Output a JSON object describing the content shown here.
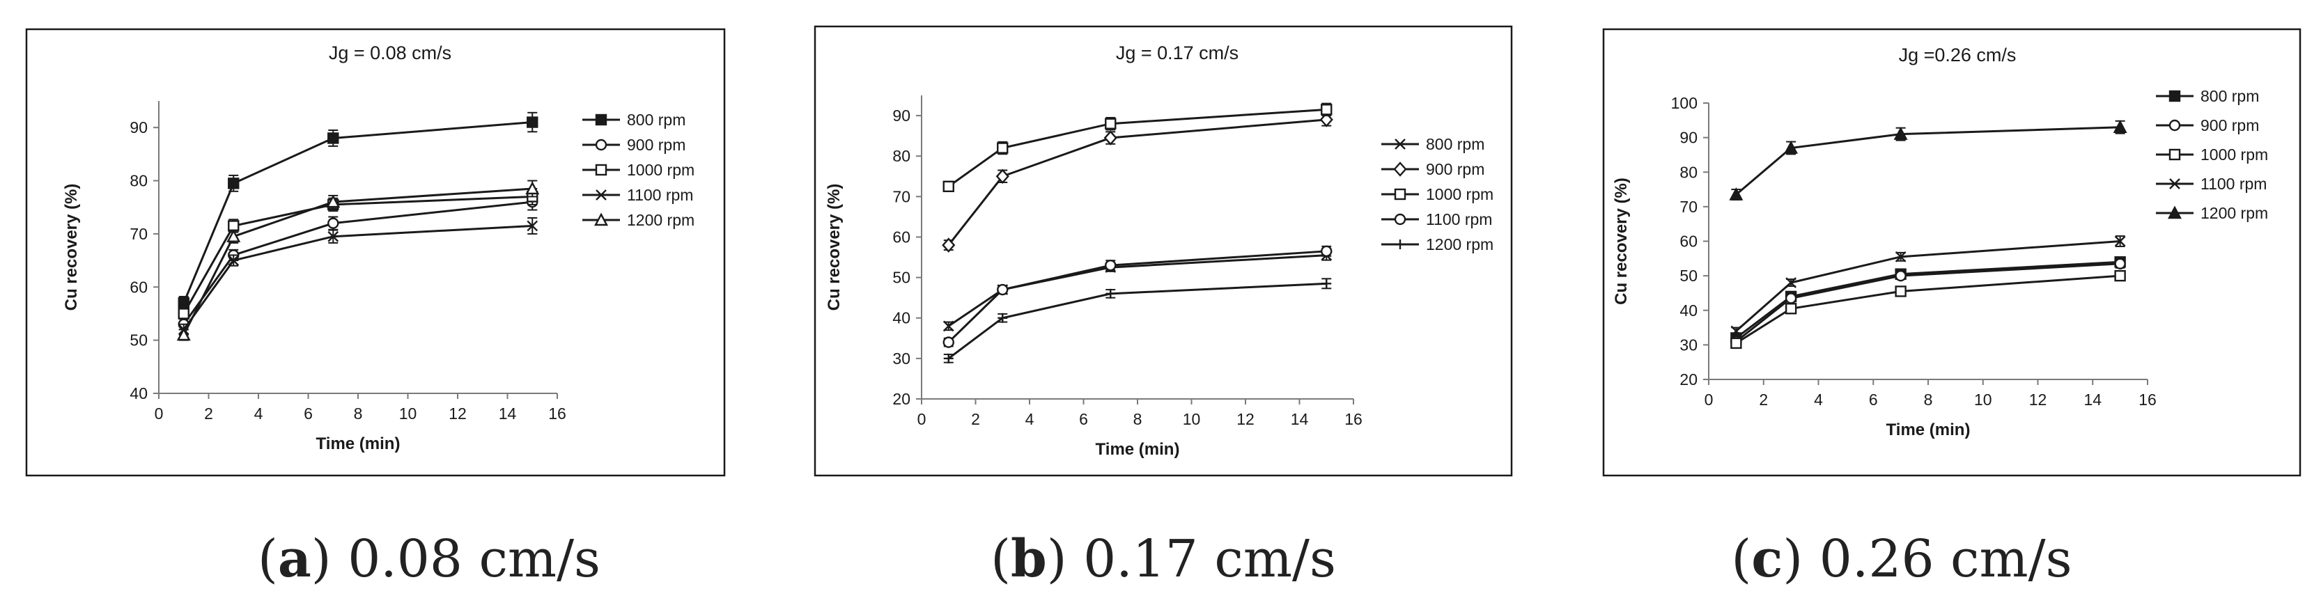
{
  "chart_data": [
    {
      "type": "line",
      "title": "Jg = 0.08 cm/s",
      "xlabel": "Time (min)",
      "ylabel": "Cu recovery (%)",
      "xlim": [
        0,
        16
      ],
      "ylim": [
        40,
        95
      ],
      "xticks": [
        0,
        2,
        4,
        6,
        8,
        10,
        12,
        14,
        16
      ],
      "yticks": [
        40,
        50,
        60,
        70,
        80,
        90
      ],
      "x": [
        1,
        3,
        7,
        15
      ],
      "legend_position": "right",
      "series": [
        {
          "name": "800 rpm",
          "marker": "square-filled",
          "values": [
            57,
            79.5,
            88,
            91
          ],
          "errors": [
            1.2,
            1.5,
            1.5,
            1.8
          ]
        },
        {
          "name": "900 rpm",
          "marker": "circle-open",
          "values": [
            53,
            66,
            72,
            76
          ],
          "errors": [
            1.0,
            1.0,
            1.2,
            1.5
          ]
        },
        {
          "name": "1000 rpm",
          "marker": "square-open",
          "values": [
            55,
            71.5,
            75.5,
            77
          ],
          "errors": [
            1.0,
            1.2,
            1.2,
            1.5
          ]
        },
        {
          "name": "1100 rpm",
          "marker": "x",
          "values": [
            52,
            65,
            69.5,
            71.5
          ],
          "errors": [
            1.0,
            1.0,
            1.2,
            1.5
          ]
        },
        {
          "name": "1200 rpm",
          "marker": "triangle-open",
          "values": [
            51,
            69.5,
            76,
            78.5
          ],
          "errors": [
            1.0,
            1.2,
            1.2,
            1.5
          ]
        }
      ]
    },
    {
      "type": "line",
      "title": "Jg = 0.17 cm/s",
      "xlabel": "Time (min)",
      "ylabel": "Cu recovery (%)",
      "xlim": [
        0,
        16
      ],
      "ylim": [
        20,
        95
      ],
      "xticks": [
        0,
        2,
        4,
        6,
        8,
        10,
        12,
        14,
        16
      ],
      "yticks": [
        20,
        30,
        40,
        50,
        60,
        70,
        80,
        90
      ],
      "x": [
        1,
        3,
        7,
        15
      ],
      "legend_position": "right",
      "series": [
        {
          "name": "800 rpm",
          "marker": "x",
          "values": [
            38,
            47,
            52.5,
            55.5
          ],
          "errors": [
            1.0,
            1.0,
            1.0,
            1.2
          ]
        },
        {
          "name": "900 rpm",
          "marker": "diamond-open",
          "values": [
            58,
            75,
            84.5,
            89
          ],
          "errors": [
            1.2,
            1.5,
            1.5,
            1.5
          ]
        },
        {
          "name": "1000 rpm",
          "marker": "square-open",
          "values": [
            72.5,
            82,
            88,
            91.5
          ],
          "errors": [
            1.2,
            1.5,
            1.5,
            1.5
          ]
        },
        {
          "name": "1100 rpm",
          "marker": "circle-open",
          "values": [
            34,
            47,
            53,
            56.5
          ],
          "errors": [
            1.0,
            1.0,
            1.2,
            1.2
          ]
        },
        {
          "name": "1200 rpm",
          "marker": "plus",
          "values": [
            30,
            40,
            46,
            48.5
          ],
          "errors": [
            1.0,
            1.0,
            1.0,
            1.2
          ]
        }
      ]
    },
    {
      "type": "line",
      "title": "Jg =0.26 cm/s",
      "xlabel": "Time (min)",
      "ylabel": "Cu recovery (%)",
      "xlim": [
        0,
        16
      ],
      "ylim": [
        20,
        100
      ],
      "xticks": [
        0,
        2,
        4,
        6,
        8,
        10,
        12,
        14,
        16
      ],
      "yticks": [
        20,
        30,
        40,
        50,
        60,
        70,
        80,
        90,
        100
      ],
      "x": [
        1,
        3,
        7,
        15
      ],
      "legend_position": "right",
      "series": [
        {
          "name": "800 rpm",
          "marker": "square-filled",
          "values": [
            32,
            44,
            50.5,
            54
          ],
          "errors": [
            1.0,
            1.0,
            1.0,
            1.2
          ]
        },
        {
          "name": "900 rpm",
          "marker": "circle-open",
          "values": [
            31,
            43.5,
            50,
            53.5
          ],
          "errors": [
            1.0,
            1.0,
            1.0,
            1.2
          ]
        },
        {
          "name": "1000 rpm",
          "marker": "square-open",
          "values": [
            30.5,
            40.5,
            45.5,
            50
          ],
          "errors": [
            1.0,
            1.0,
            1.0,
            1.2
          ]
        },
        {
          "name": "1100 rpm",
          "marker": "x",
          "values": [
            34,
            48,
            55.5,
            60
          ],
          "errors": [
            1.0,
            1.0,
            1.2,
            1.5
          ]
        },
        {
          "name": "1200 rpm",
          "marker": "triangle-filled",
          "values": [
            73.5,
            87,
            91,
            93
          ],
          "errors": [
            1.5,
            1.8,
            1.8,
            1.8
          ]
        }
      ]
    }
  ],
  "captions": [
    {
      "letter": "a",
      "text": "0.08 cm/s"
    },
    {
      "letter": "b",
      "text": "0.17 cm/s"
    },
    {
      "letter": "c",
      "text": "0.26 cm/s"
    }
  ]
}
